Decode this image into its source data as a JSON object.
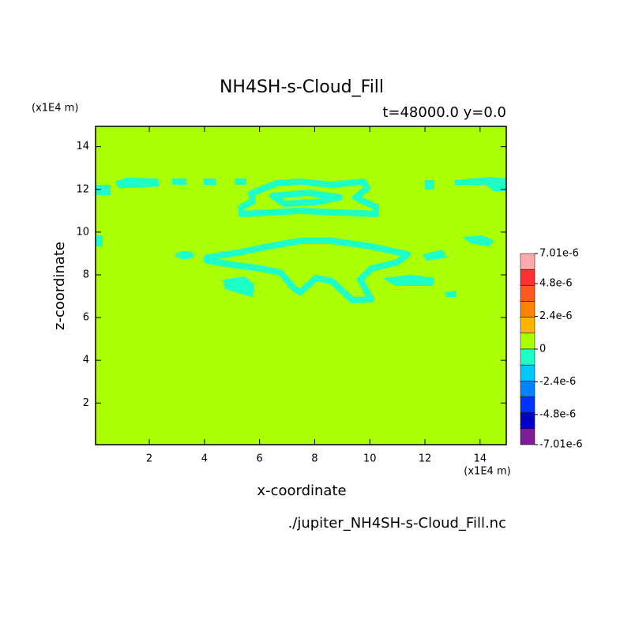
{
  "chart_data": {
    "type": "contour",
    "title": "NH4SH-s-Cloud_Fill",
    "subtitle": "t=48000.0 y=0.0",
    "x_label": "x-coordinate",
    "y_label": "z-coordinate",
    "x_unit": "(x1E4 m)",
    "y_unit": "(x1E4 m)",
    "footer": "./jupiter_NH4SH-s-Cloud_Fill.nc",
    "xlim": [
      0.05,
      14.95
    ],
    "ylim": [
      0.05,
      14.95
    ],
    "xticks": [
      2,
      4,
      6,
      8,
      10,
      12,
      14
    ],
    "yticks": [
      2,
      4,
      6,
      8,
      10,
      12,
      14
    ],
    "background_color": "#aaff00",
    "colorbar": {
      "colors": [
        "#ffaaaa",
        "#ff3030",
        "#ff5a1e",
        "#ff8200",
        "#ffb400",
        "#aaff00",
        "#1effc8",
        "#00c8ff",
        "#0082ff",
        "#0032ff",
        "#0000c8",
        "#7d1e96"
      ],
      "ticks": [
        {
          "value": 7.01e-06,
          "label": "7.01e-6"
        },
        {
          "value": 4.8e-06,
          "label": "4.8e-6"
        },
        {
          "value": 2.4e-06,
          "label": "2.4e-6"
        },
        0,
        {
          "value": -2.4e-06,
          "label": "-2.4e-6"
        },
        {
          "value": -4.8e-06,
          "label": "-4.8e-6"
        },
        {
          "value": -7.01e-06,
          "label": "-7.01e-6"
        }
      ],
      "lim": [
        -7.01e-06,
        7.01e-06
      ]
    }
  }
}
